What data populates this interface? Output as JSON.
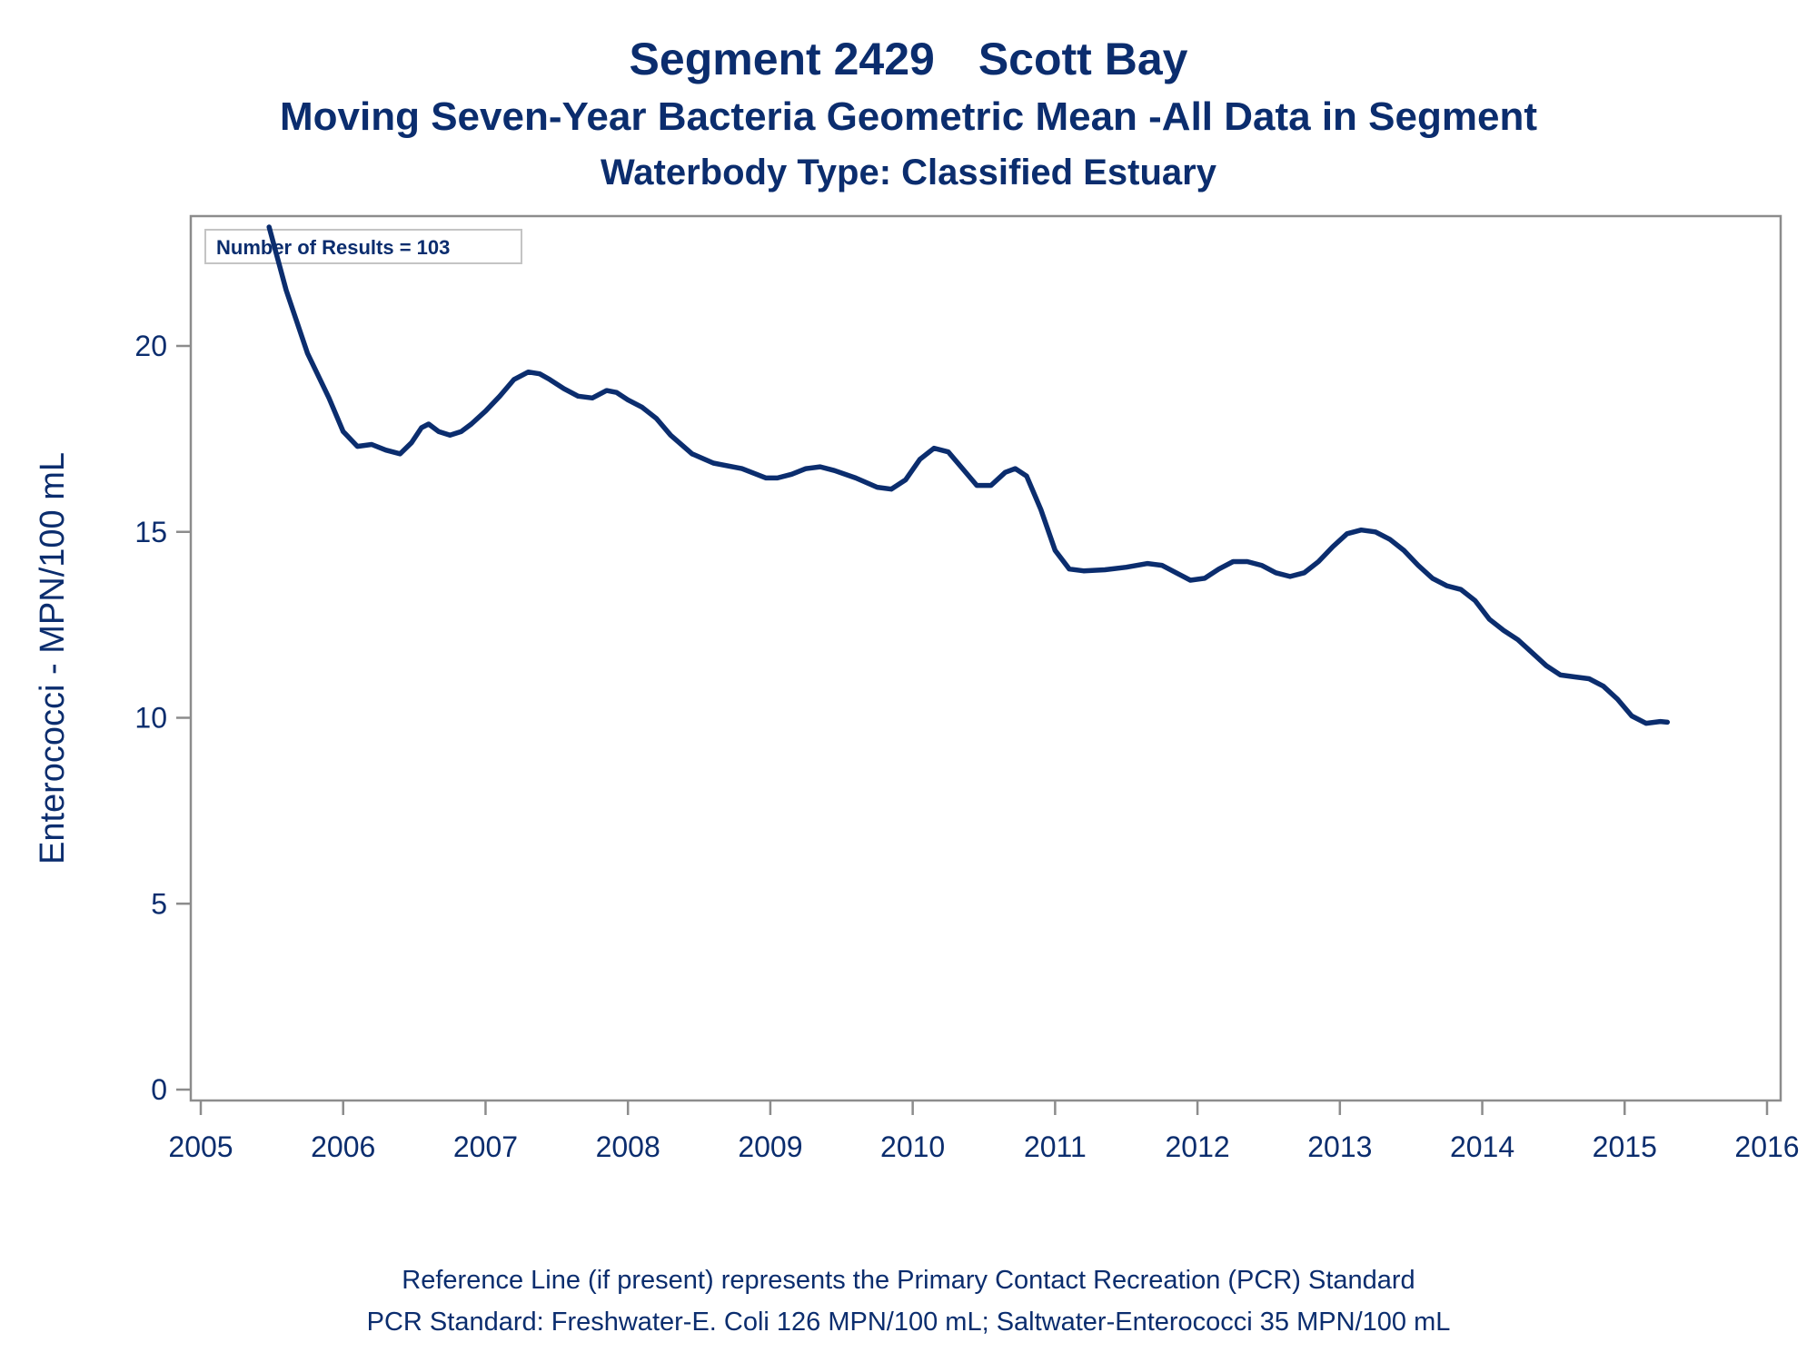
{
  "chart_data": {
    "type": "line",
    "title_segment": "Segment 2429",
    "title_name": "Scott Bay",
    "subtitle": "Moving Seven-Year Bacteria Geometric Mean -All Data in Segment",
    "subtitle2": "Waterbody Type: Classified Estuary",
    "xlabel": "",
    "ylabel": "Enterococci - MPN/100 mL",
    "xlim": [
      2005,
      2016
    ],
    "ylim": [
      0,
      23.5
    ],
    "x_ticks": [
      2005,
      2006,
      2007,
      2008,
      2009,
      2010,
      2011,
      2012,
      2013,
      2014,
      2015,
      2016
    ],
    "y_ticks": [
      0,
      5,
      10,
      15,
      20
    ],
    "annotation": "Number of Results = 103",
    "grid": false,
    "line_color": "#0b2d6e",
    "series": [
      {
        "x": [
          2005.48,
          2005.6,
          2005.75,
          2005.9,
          2006.0,
          2006.1,
          2006.2,
          2006.3,
          2006.4,
          2006.48,
          2006.55,
          2006.6,
          2006.67,
          2006.75,
          2006.83,
          2006.9,
          2007.0,
          2007.1,
          2007.2,
          2007.3,
          2007.38,
          2007.45,
          2007.55,
          2007.65,
          2007.75,
          2007.85,
          2007.92,
          2008.0,
          2008.1,
          2008.2,
          2008.3,
          2008.45,
          2008.6,
          2008.8,
          2008.97,
          2009.05,
          2009.15,
          2009.25,
          2009.35,
          2009.45,
          2009.6,
          2009.75,
          2009.85,
          2009.95,
          2010.05,
          2010.15,
          2010.25,
          2010.35,
          2010.45,
          2010.55,
          2010.65,
          2010.72,
          2010.8,
          2010.9,
          2011.0,
          2011.1,
          2011.2,
          2011.35,
          2011.5,
          2011.65,
          2011.75,
          2011.85,
          2011.95,
          2012.05,
          2012.15,
          2012.25,
          2012.35,
          2012.45,
          2012.55,
          2012.65,
          2012.75,
          2012.85,
          2012.95,
          2013.05,
          2013.15,
          2013.25,
          2013.35,
          2013.45,
          2013.55,
          2013.65,
          2013.75,
          2013.85,
          2013.95,
          2014.05,
          2014.15,
          2014.25,
          2014.35,
          2014.45,
          2014.55,
          2014.65,
          2014.75,
          2014.85,
          2014.95,
          2015.05,
          2015.15,
          2015.25,
          2015.3
        ],
        "y": [
          23.2,
          21.5,
          19.8,
          18.6,
          17.7,
          17.3,
          17.35,
          17.2,
          17.1,
          17.4,
          17.8,
          17.9,
          17.7,
          17.6,
          17.7,
          17.9,
          18.25,
          18.65,
          19.1,
          19.3,
          19.25,
          19.1,
          18.85,
          18.65,
          18.6,
          18.8,
          18.75,
          18.55,
          18.35,
          18.05,
          17.6,
          17.1,
          16.85,
          16.7,
          16.45,
          16.45,
          16.55,
          16.7,
          16.75,
          16.65,
          16.45,
          16.2,
          16.15,
          16.4,
          16.95,
          17.25,
          17.15,
          16.7,
          16.25,
          16.25,
          16.6,
          16.7,
          16.5,
          15.6,
          14.5,
          14.0,
          13.95,
          13.98,
          14.05,
          14.15,
          14.1,
          13.9,
          13.7,
          13.75,
          14.0,
          14.2,
          14.2,
          14.1,
          13.9,
          13.8,
          13.9,
          14.2,
          14.6,
          14.95,
          15.05,
          15.0,
          14.8,
          14.5,
          14.1,
          13.75,
          13.55,
          13.45,
          13.15,
          12.65,
          12.35,
          12.1,
          11.75,
          11.4,
          11.15,
          11.1,
          11.05,
          10.85,
          10.5,
          10.05,
          9.85,
          9.9,
          9.88
        ]
      }
    ]
  },
  "footer": {
    "line1": "Reference Line (if present) represents the Primary Contact Recreation (PCR) Standard",
    "line2": "PCR Standard: Freshwater-E. Coli 126 MPN/100 mL; Saltwater-Enterococci 35 MPN/100 mL"
  }
}
